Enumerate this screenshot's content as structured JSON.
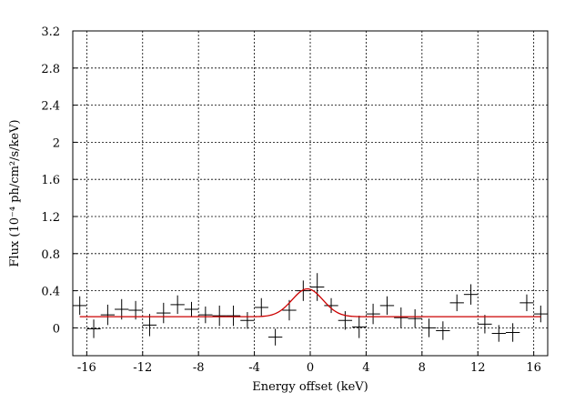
{
  "chart_data": {
    "type": "scatter",
    "title": "",
    "xlabel": "Energy offset (keV)",
    "ylabel": "Flux (10⁻⁴ ph/cm²/s/keV)",
    "xlim": [
      -17,
      17
    ],
    "ylim": [
      -0.3,
      3.2
    ],
    "grid": true,
    "x_ticks": [
      "-16",
      "-12",
      "-8",
      "-4",
      "0",
      "4",
      "8",
      "12",
      "16"
    ],
    "y_ticks": [
      "3.2",
      "2.8",
      "2.4",
      "2",
      "1.6",
      "1.2",
      "0.8",
      "0.4",
      "0"
    ],
    "series": [
      {
        "kind": "data-with-errors",
        "color": "#000000",
        "points": [
          {
            "x": -16.5,
            "xerr": 0.5,
            "y": 0.24,
            "yerr": 0.1
          },
          {
            "x": -15.5,
            "xerr": 0.5,
            "y": -0.01,
            "yerr": 0.1
          },
          {
            "x": -14.5,
            "xerr": 0.5,
            "y": 0.14,
            "yerr": 0.11
          },
          {
            "x": -13.5,
            "xerr": 0.5,
            "y": 0.2,
            "yerr": 0.11
          },
          {
            "x": -12.5,
            "xerr": 0.5,
            "y": 0.19,
            "yerr": 0.1
          },
          {
            "x": -11.5,
            "xerr": 0.5,
            "y": 0.03,
            "yerr": 0.12
          },
          {
            "x": -10.5,
            "xerr": 0.5,
            "y": 0.16,
            "yerr": 0.11
          },
          {
            "x": -9.5,
            "xerr": 0.5,
            "y": 0.25,
            "yerr": 0.1
          },
          {
            "x": -8.5,
            "xerr": 0.5,
            "y": 0.2,
            "yerr": 0.08
          },
          {
            "x": -7.5,
            "xerr": 0.5,
            "y": 0.14,
            "yerr": 0.09
          },
          {
            "x": -6.5,
            "xerr": 0.5,
            "y": 0.13,
            "yerr": 0.11
          },
          {
            "x": -5.5,
            "xerr": 0.5,
            "y": 0.13,
            "yerr": 0.11
          },
          {
            "x": -4.5,
            "xerr": 0.5,
            "y": 0.08,
            "yerr": 0.09
          },
          {
            "x": -3.5,
            "xerr": 0.5,
            "y": 0.22,
            "yerr": 0.1
          },
          {
            "x": -2.5,
            "xerr": 0.5,
            "y": -0.1,
            "yerr": 0.09
          },
          {
            "x": -1.5,
            "xerr": 0.5,
            "y": 0.19,
            "yerr": 0.11
          },
          {
            "x": -0.5,
            "xerr": 0.5,
            "y": 0.4,
            "yerr": 0.11
          },
          {
            "x": 0.5,
            "xerr": 0.5,
            "y": 0.44,
            "yerr": 0.15
          },
          {
            "x": 1.5,
            "xerr": 0.5,
            "y": 0.24,
            "yerr": 0.08
          },
          {
            "x": 2.5,
            "xerr": 0.5,
            "y": 0.08,
            "yerr": 0.1
          },
          {
            "x": 3.5,
            "xerr": 0.5,
            "y": 0.01,
            "yerr": 0.12
          },
          {
            "x": 4.5,
            "xerr": 0.5,
            "y": 0.15,
            "yerr": 0.11
          },
          {
            "x": 5.5,
            "xerr": 0.5,
            "y": 0.24,
            "yerr": 0.1
          },
          {
            "x": 6.5,
            "xerr": 0.5,
            "y": 0.11,
            "yerr": 0.11
          },
          {
            "x": 7.5,
            "xerr": 0.5,
            "y": 0.1,
            "yerr": 0.1
          },
          {
            "x": 8.5,
            "xerr": 0.5,
            "y": 0.0,
            "yerr": 0.1
          },
          {
            "x": 9.5,
            "xerr": 0.5,
            "y": -0.03,
            "yerr": 0.1
          },
          {
            "x": 10.5,
            "xerr": 0.5,
            "y": 0.27,
            "yerr": 0.09
          },
          {
            "x": 11.5,
            "xerr": 0.5,
            "y": 0.36,
            "yerr": 0.11
          },
          {
            "x": 12.5,
            "xerr": 0.5,
            "y": 0.04,
            "yerr": 0.1
          },
          {
            "x": 13.5,
            "xerr": 0.5,
            "y": -0.06,
            "yerr": 0.09
          },
          {
            "x": 14.5,
            "xerr": 0.5,
            "y": -0.05,
            "yerr": 0.1
          },
          {
            "x": 15.5,
            "xerr": 0.5,
            "y": 0.27,
            "yerr": 0.09
          },
          {
            "x": 16.5,
            "xerr": 0.5,
            "y": 0.15,
            "yerr": 0.09
          }
        ]
      },
      {
        "kind": "model-line",
        "color": "#cc0000",
        "model": {
          "baseline": 0.12,
          "amplitude": 0.3,
          "center": -0.2,
          "sigma": 1.1,
          "x_range": [
            -16.5,
            16.5
          ]
        }
      }
    ]
  }
}
